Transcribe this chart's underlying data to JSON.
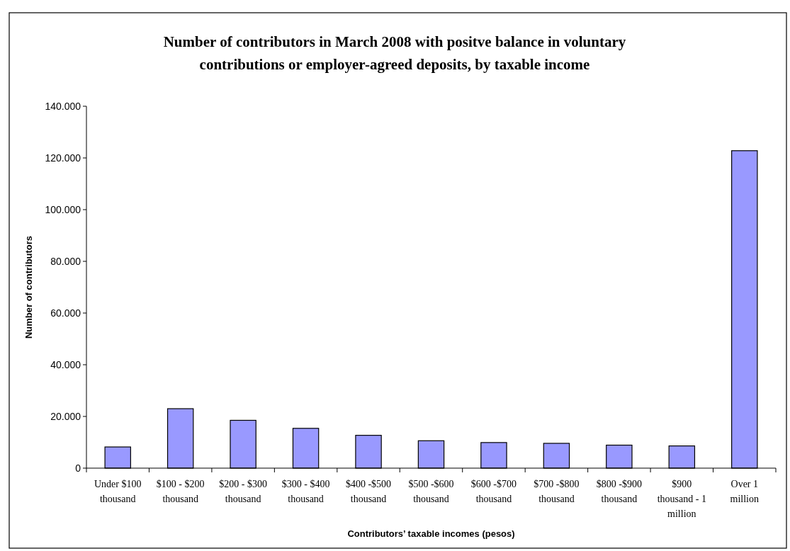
{
  "chart_data": {
    "type": "bar",
    "title": "Number of contributors in March 2008 with positve balance in voluntary\ncontributions or employer-agreed deposits, by taxable income",
    "xlabel": "Contributors’ taxable incomes (pesos)",
    "ylabel": "Number of contributors",
    "categories": [
      "Under  $100\nthousand",
      "$100 - $200\nthousand",
      "$200 - $300\nthousand",
      "$300 - $400\nthousand",
      "$400 -$500\nthousand",
      "$500 -$600\nthousand",
      "$600 -$700\nthousand",
      "$700 -$800\nthousand",
      "$800 -$900\nthousand",
      "$900\nthousand - 1\nmillion",
      "Over 1\nmillion"
    ],
    "values": [
      8200,
      23000,
      18500,
      15400,
      12700,
      10600,
      9900,
      9600,
      8900,
      8600,
      122800
    ],
    "color": "#9999ff",
    "ylim": [
      0,
      140000
    ],
    "yticks": [
      0,
      {
        "value": 20000,
        "label": "20.000"
      },
      {
        "value": 40000,
        "label": "40.000"
      },
      {
        "value": 60000,
        "label": "60.000"
      },
      {
        "value": 80000,
        "label": "80.000"
      },
      {
        "value": 100000,
        "label": "100.000"
      },
      {
        "value": 120000,
        "label": "120.000"
      },
      {
        "value": 140000,
        "label": "140.000"
      }
    ],
    "grid": false
  }
}
